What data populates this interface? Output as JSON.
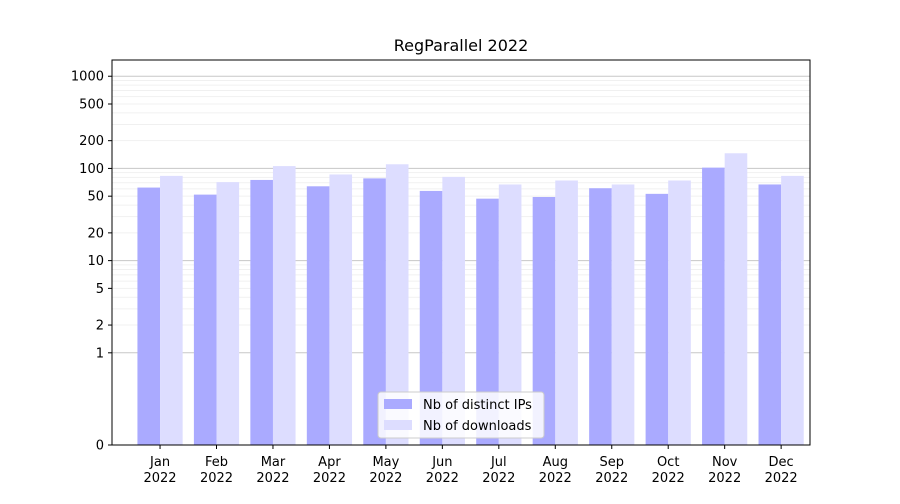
{
  "chart_data": {
    "type": "bar",
    "title": "RegParallel 2022",
    "xlabel": "",
    "ylabel": "",
    "y_scale": "symlog",
    "y_ticks": [
      0,
      1,
      2,
      5,
      10,
      20,
      50,
      100,
      200,
      500,
      1000
    ],
    "y_tick_labels": [
      "0",
      "1",
      "2",
      "5",
      "10",
      "20",
      "50",
      "100",
      "200",
      "500",
      "1000"
    ],
    "ylim": [
      0,
      1500
    ],
    "grid": true,
    "legend_position": "bottom-center",
    "categories": [
      "Jan\n2022",
      "Feb\n2022",
      "Mar\n2022",
      "Apr\n2022",
      "May\n2022",
      "Jun\n2022",
      "Jul\n2022",
      "Aug\n2022",
      "Sep\n2022",
      "Oct\n2022",
      "Nov\n2022",
      "Dec\n2022"
    ],
    "series": [
      {
        "name": "Nb of distinct IPs",
        "color": "#aaaaff",
        "values": [
          62,
          52,
          75,
          64,
          78,
          57,
          47,
          49,
          61,
          53,
          102,
          67
        ]
      },
      {
        "name": "Nb of downloads",
        "color": "#ddddff",
        "values": [
          83,
          71,
          106,
          86,
          111,
          81,
          67,
          74,
          67,
          74,
          146,
          83
        ]
      }
    ]
  }
}
